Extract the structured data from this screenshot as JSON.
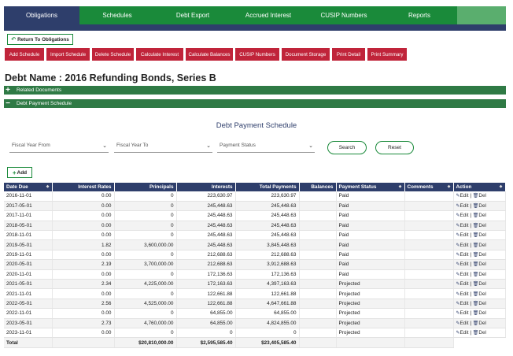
{
  "nav": {
    "tabs": [
      {
        "label": "Obligations",
        "active": true
      },
      {
        "label": "Schedules",
        "active": false
      },
      {
        "label": "Debt Export",
        "active": false
      },
      {
        "label": "Accrued Interest",
        "active": false
      },
      {
        "label": "CUSIP Numbers",
        "active": false
      },
      {
        "label": "Reports",
        "active": false
      }
    ]
  },
  "return_label": "Return To Obligations",
  "actions": [
    {
      "label": "Add Schedule",
      "name": "add-schedule-button"
    },
    {
      "label": "Import Schedule",
      "name": "import-schedule-button"
    },
    {
      "label": "Delete Schedule",
      "name": "delete-schedule-button"
    },
    {
      "label": "Calculate Interest",
      "name": "calculate-interest-button"
    },
    {
      "label": "Calculate Balances",
      "name": "calculate-balances-button"
    },
    {
      "label": "CUSIP Numbers",
      "name": "cusip-numbers-button"
    },
    {
      "label": "Document Storage",
      "name": "document-storage-button"
    },
    {
      "label": "Print Detail",
      "name": "print-detail-button"
    },
    {
      "label": "Print Summary",
      "name": "print-summary-button"
    }
  ],
  "page_title": "Debt Name : 2016 Refunding Bonds, Series B",
  "sections": {
    "related": {
      "label": "Related Documents",
      "symbol": "+"
    },
    "payment": {
      "label": "Debt Payment Schedule",
      "symbol": "−"
    }
  },
  "schedule_title": "Debt Payment Schedule",
  "filters": {
    "fy_from": "Fiscal Year From",
    "fy_to": "Fiscal Year To",
    "status": "Payment Status"
  },
  "buttons": {
    "search": "Search",
    "reset": "Reset",
    "add": "Add"
  },
  "table": {
    "headers": [
      "Date Due",
      "Interest Rates",
      "Principals",
      "Interests",
      "Total Payments",
      "Balances",
      "Payment Status",
      "Comments",
      "Action"
    ],
    "edit_label": "Edit",
    "del_label": "Del",
    "rows": [
      {
        "date": "2016-11-01",
        "rate": "0.00",
        "principal": "0",
        "interest": "223,630.97",
        "total": "223,630.97",
        "balance": "",
        "status": "Paid",
        "comments": ""
      },
      {
        "date": "2017-05-01",
        "rate": "0.00",
        "principal": "0",
        "interest": "245,448.63",
        "total": "245,448.63",
        "balance": "",
        "status": "Paid",
        "comments": ""
      },
      {
        "date": "2017-11-01",
        "rate": "0.00",
        "principal": "0",
        "interest": "245,448.63",
        "total": "245,448.63",
        "balance": "",
        "status": "Paid",
        "comments": ""
      },
      {
        "date": "2018-05-01",
        "rate": "0.00",
        "principal": "0",
        "interest": "245,448.63",
        "total": "245,448.63",
        "balance": "",
        "status": "Paid",
        "comments": ""
      },
      {
        "date": "2018-11-01",
        "rate": "0.00",
        "principal": "0",
        "interest": "245,448.63",
        "total": "245,448.63",
        "balance": "",
        "status": "Paid",
        "comments": ""
      },
      {
        "date": "2019-05-01",
        "rate": "1.82",
        "principal": "3,600,000.00",
        "interest": "245,448.63",
        "total": "3,845,448.63",
        "balance": "",
        "status": "Paid",
        "comments": ""
      },
      {
        "date": "2019-11-01",
        "rate": "0.00",
        "principal": "0",
        "interest": "212,688.63",
        "total": "212,688.63",
        "balance": "",
        "status": "Paid",
        "comments": ""
      },
      {
        "date": "2020-05-01",
        "rate": "2.19",
        "principal": "3,700,000.00",
        "interest": "212,688.63",
        "total": "3,912,688.63",
        "balance": "",
        "status": "Paid",
        "comments": ""
      },
      {
        "date": "2020-11-01",
        "rate": "0.00",
        "principal": "0",
        "interest": "172,136.63",
        "total": "172,136.63",
        "balance": "",
        "status": "Paid",
        "comments": ""
      },
      {
        "date": "2021-05-01",
        "rate": "2.34",
        "principal": "4,225,000.00",
        "interest": "172,163.63",
        "total": "4,397,163.63",
        "balance": "",
        "status": "Projected",
        "comments": ""
      },
      {
        "date": "2021-11-01",
        "rate": "0.00",
        "principal": "0",
        "interest": "122,661.88",
        "total": "122,661.88",
        "balance": "",
        "status": "Projected",
        "comments": ""
      },
      {
        "date": "2022-05-01",
        "rate": "2.56",
        "principal": "4,525,000.00",
        "interest": "122,661.88",
        "total": "4,647,661.88",
        "balance": "",
        "status": "Projected",
        "comments": ""
      },
      {
        "date": "2022-11-01",
        "rate": "0.00",
        "principal": "0",
        "interest": "64,855.00",
        "total": "64,855.00",
        "balance": "",
        "status": "Projected",
        "comments": ""
      },
      {
        "date": "2023-05-01",
        "rate": "2.73",
        "principal": "4,760,000.00",
        "interest": "64,855.00",
        "total": "4,824,855.00",
        "balance": "",
        "status": "Projected",
        "comments": ""
      },
      {
        "date": "2023-11-01",
        "rate": "0.00",
        "principal": "0",
        "interest": "0",
        "total": "0",
        "balance": "",
        "status": "Projected",
        "comments": ""
      }
    ],
    "total": {
      "label": "Total",
      "principal": "$20,810,000.00",
      "interest": "$2,595,585.40",
      "total": "$23,405,585.40"
    }
  },
  "icons": {
    "edit": "edit-icon",
    "del": "trash-icon",
    "return": "return-arrow-icon",
    "add": "plus-icon",
    "sort": "sort-icon",
    "chevron": "chevron-down-icon"
  }
}
